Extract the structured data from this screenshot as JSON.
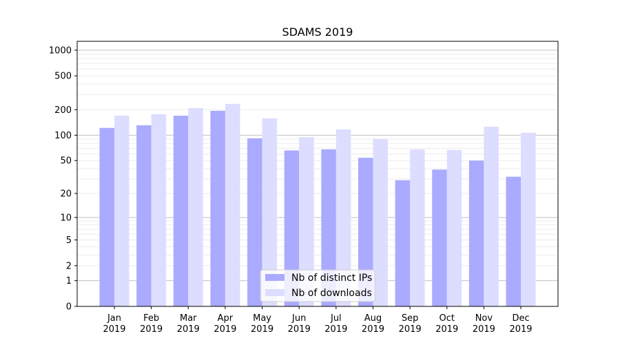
{
  "chart_data": {
    "type": "bar",
    "title": "SDAMS 2019",
    "xlabel": "",
    "ylabel": "",
    "yscale": "log(1+y)",
    "ylim": [
      0,
      1270
    ],
    "yticks": [
      0,
      1,
      2,
      5,
      10,
      20,
      50,
      100,
      200,
      500,
      1000
    ],
    "grid": true,
    "legend_placement": "lower-center",
    "categories": [
      "Jan\n2019",
      "Feb\n2019",
      "Mar\n2019",
      "Apr\n2019",
      "May\n2019",
      "Jun\n2019",
      "Jul\n2019",
      "Aug\n2019",
      "Sep\n2019",
      "Oct\n2019",
      "Nov\n2019",
      "Dec\n2019"
    ],
    "series": [
      {
        "name": "Nb of distinct IPs",
        "color": "#aaaaff",
        "values": [
          122,
          131,
          170,
          194,
          92,
          66,
          68,
          54,
          29,
          39,
          50,
          32
        ]
      },
      {
        "name": "Nb of downloads",
        "color": "#ddddff",
        "values": [
          170,
          177,
          209,
          234,
          158,
          95,
          117,
          90,
          68,
          67,
          126,
          107
        ]
      }
    ]
  }
}
